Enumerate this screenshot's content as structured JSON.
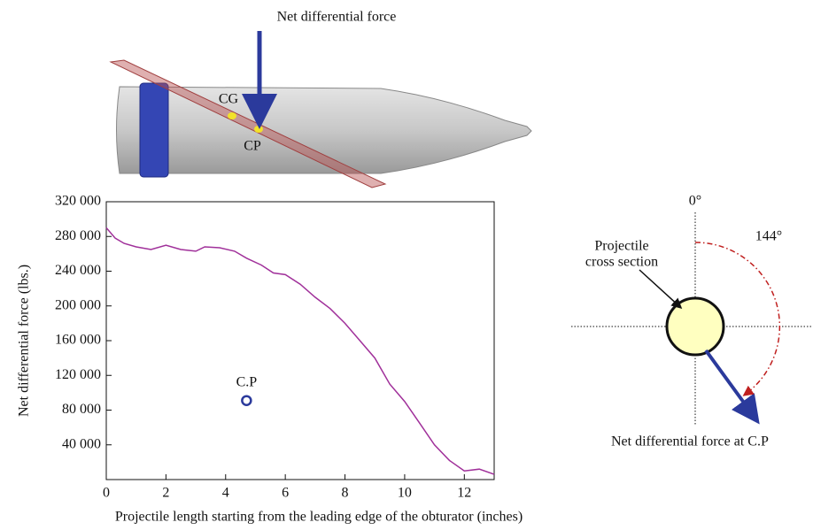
{
  "projectile": {
    "force_label": "Net differential force",
    "cg_label": "CG",
    "cp_label": "CP"
  },
  "chart_data": {
    "type": "line",
    "x_label": "Projectile length starting from the leading edge of the obturator (inches)",
    "y_label": "Net differential force (lbs.)",
    "x": [
      0,
      0.3,
      0.6,
      1,
      1.5,
      2,
      2.5,
      3,
      3.3,
      3.8,
      4.3,
      4.7,
      5.2,
      5.6,
      6,
      6.5,
      7,
      7.5,
      8,
      8.5,
      9,
      9.5,
      10,
      10.5,
      11,
      11.5,
      12,
      12.5,
      13
    ],
    "values": [
      290000,
      278000,
      272000,
      268000,
      265000,
      270000,
      265000,
      263000,
      268000,
      267000,
      263000,
      255000,
      247000,
      238000,
      236000,
      225000,
      210000,
      197000,
      180000,
      160000,
      140000,
      110000,
      90000,
      65000,
      40000,
      22000,
      10000,
      12000,
      6000
    ],
    "color": "#a0309a",
    "xlim": [
      0,
      13
    ],
    "xticks": [
      0,
      2,
      4,
      6,
      8,
      10,
      12
    ],
    "ylim": [
      0,
      320000
    ],
    "yticks": [
      {
        "value": 40000,
        "label": "40 000"
      },
      {
        "value": 80000,
        "label": "80 000"
      },
      {
        "value": 120000,
        "label": "120 000"
      },
      {
        "value": 160000,
        "label": "160 000"
      },
      {
        "value": 200000,
        "label": "200 000"
      },
      {
        "value": 240000,
        "label": "240 000"
      },
      {
        "value": 280000,
        "label": "280 000"
      },
      {
        "value": 320000,
        "label": "320 000"
      }
    ],
    "points": [
      {
        "label": "C.P",
        "x": 4.7,
        "y": 91000
      }
    ]
  },
  "force_diagram": {
    "zero_label": "0°",
    "angle_label": "144°",
    "section_label_1": "Projectile",
    "section_label_2": "cross section",
    "force_label": "Net differential force at C.P"
  }
}
